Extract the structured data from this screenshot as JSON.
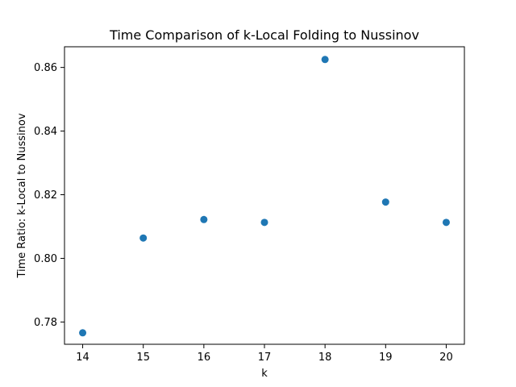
{
  "chart_data": {
    "type": "scatter",
    "title": "Time Comparison of k-Local Folding to Nussinov",
    "xlabel": "k",
    "ylabel": "Time Ratio: k-Local to Nussinov",
    "x": [
      14,
      15,
      16,
      17,
      18,
      19,
      20
    ],
    "y": [
      0.7766,
      0.8064,
      0.8122,
      0.8113,
      0.8625,
      0.8177,
      0.8113
    ],
    "xlim": [
      13.7,
      20.3
    ],
    "ylim": [
      0.773,
      0.8665
    ],
    "xticks": [
      14,
      15,
      16,
      17,
      18,
      19,
      20
    ],
    "xtick_labels": [
      "14",
      "15",
      "16",
      "17",
      "18",
      "19",
      "20"
    ],
    "yticks": [
      0.78,
      0.8,
      0.82,
      0.84,
      0.86
    ],
    "ytick_labels": [
      "0.78",
      "0.80",
      "0.82",
      "0.84",
      "0.86"
    ],
    "marker_color": "#1f77b4",
    "grid": false,
    "legend": "none"
  }
}
